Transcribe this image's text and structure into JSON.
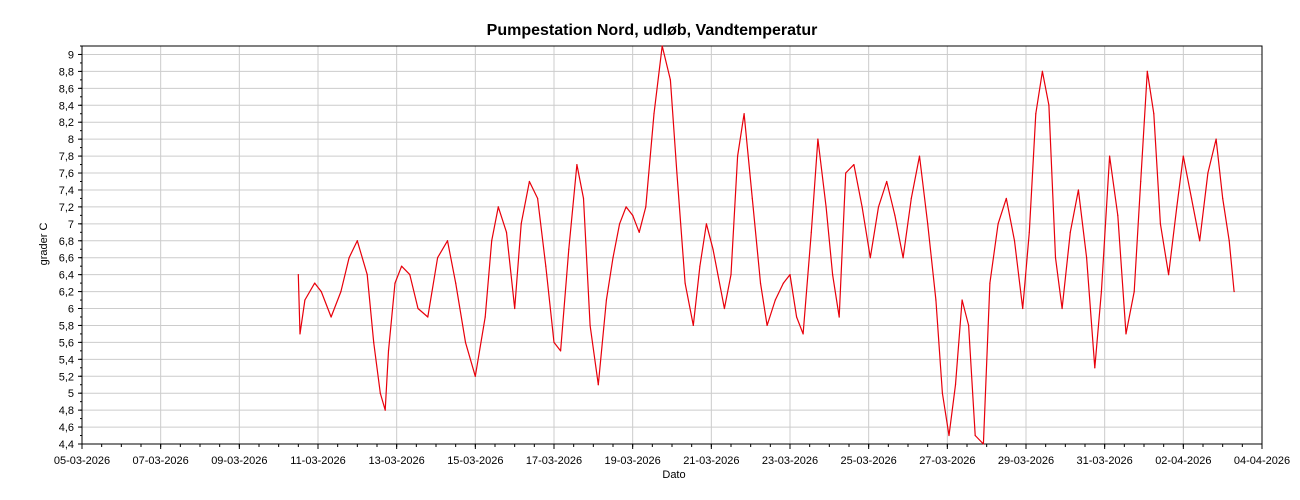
{
  "chart_data": {
    "type": "line",
    "title": "Pumpestation Nord, udløb, Vandtemperatur",
    "xlabel": "Dato",
    "ylabel": "grader C",
    "xlim": [
      "2026-03-05",
      "2026-04-04"
    ],
    "ylim": [
      4.4,
      9.1
    ],
    "x_tick_labels": [
      "05-03-2026",
      "07-03-2026",
      "09-03-2026",
      "11-03-2026",
      "13-03-2026",
      "15-03-2026",
      "17-03-2026",
      "19-03-2026",
      "21-03-2026",
      "23-03-2026",
      "25-03-2026",
      "27-03-2026",
      "29-03-2026",
      "31-03-2026",
      "02-04-2026",
      "04-04-2026"
    ],
    "y_tick_labels": [
      "4,4",
      "4,6",
      "4,8",
      "5",
      "5,2",
      "5,4",
      "5,6",
      "5,8",
      "6",
      "6,2",
      "6,4",
      "6,6",
      "6,8",
      "7",
      "7,2",
      "7,4",
      "7,6",
      "7,8",
      "8",
      "8,2",
      "8,4",
      "8,6",
      "8,8",
      "9"
    ],
    "y_ticks": [
      4.4,
      4.6,
      4.8,
      5.0,
      5.2,
      5.4,
      5.6,
      5.8,
      6.0,
      6.2,
      6.4,
      6.6,
      6.8,
      7.0,
      7.2,
      7.4,
      7.6,
      7.8,
      8.0,
      8.2,
      8.4,
      8.6,
      8.8,
      9.0
    ],
    "grid": true,
    "colors": {
      "series": "#e8000b",
      "grid": "#cccccc",
      "axis": "#000000"
    },
    "series": [
      {
        "x": [
          "2026-03-10T12:00",
          "2026-03-10T13:00",
          "2026-03-10T16:00",
          "2026-03-10T22:00",
          "2026-03-11T02:00",
          "2026-03-11T08:00",
          "2026-03-11T14:00",
          "2026-03-11T19:00",
          "2026-03-12T00:00",
          "2026-03-12T06:00",
          "2026-03-12T10:00",
          "2026-03-12T14:00",
          "2026-03-12T17:00",
          "2026-03-12T19:00",
          "2026-03-12T23:00",
          "2026-03-13T03:00",
          "2026-03-13T08:00",
          "2026-03-13T13:00",
          "2026-03-13T19:00",
          "2026-03-14T01:00",
          "2026-03-14T07:00",
          "2026-03-14T12:00",
          "2026-03-14T18:00",
          "2026-03-15T00:00",
          "2026-03-15T06:00",
          "2026-03-15T10:00",
          "2026-03-15T14:00",
          "2026-03-15T19:00",
          "2026-03-16T00:00",
          "2026-03-16T04:00",
          "2026-03-16T09:00",
          "2026-03-16T14:00",
          "2026-03-16T19:00",
          "2026-03-17T00:00",
          "2026-03-17T04:00",
          "2026-03-17T09:00",
          "2026-03-17T14:00",
          "2026-03-17T18:00",
          "2026-03-17T22:00",
          "2026-03-18T03:00",
          "2026-03-18T08:00",
          "2026-03-18T12:00",
          "2026-03-18T16:00",
          "2026-03-18T20:00",
          "2026-03-19T00:00",
          "2026-03-19T04:00",
          "2026-03-19T08:00",
          "2026-03-19T13:00",
          "2026-03-19T18:00",
          "2026-03-19T23:00",
          "2026-03-20T03:00",
          "2026-03-20T08:00",
          "2026-03-20T13:00",
          "2026-03-20T17:00",
          "2026-03-20T21:00",
          "2026-03-21T01:00",
          "2026-03-21T04:00",
          "2026-03-21T08:00",
          "2026-03-21T12:00",
          "2026-03-21T16:00",
          "2026-03-21T20:00",
          "2026-03-22T01:00",
          "2026-03-22T06:00",
          "2026-03-22T10:00",
          "2026-03-22T15:00",
          "2026-03-22T20:00",
          "2026-03-23T00:00",
          "2026-03-23T04:00",
          "2026-03-23T08:00",
          "2026-03-23T13:00",
          "2026-03-23T17:00",
          "2026-03-23T22:00",
          "2026-03-24T02:00",
          "2026-03-24T06:00",
          "2026-03-24T10:00",
          "2026-03-24T15:00",
          "2026-03-24T20:00",
          "2026-03-25T01:00",
          "2026-03-25T06:00",
          "2026-03-25T11:00",
          "2026-03-25T16:00",
          "2026-03-25T21:00",
          "2026-03-26T02:00",
          "2026-03-26T07:00",
          "2026-03-26T12:00",
          "2026-03-26T17:00",
          "2026-03-26T21:00",
          "2026-03-27T01:00",
          "2026-03-27T05:00",
          "2026-03-27T09:00",
          "2026-03-27T13:00",
          "2026-03-27T17:00",
          "2026-03-27T22:00",
          "2026-03-28T02:00",
          "2026-03-28T07:00",
          "2026-03-28T12:00",
          "2026-03-28T17:00",
          "2026-03-28T22:00",
          "2026-03-29T02:00",
          "2026-03-29T06:00",
          "2026-03-29T10:00",
          "2026-03-29T14:00",
          "2026-03-29T18:00",
          "2026-03-29T22:00",
          "2026-03-30T03:00",
          "2026-03-30T08:00",
          "2026-03-30T13:00",
          "2026-03-30T18:00",
          "2026-03-30T22:00",
          "2026-03-31T03:00",
          "2026-03-31T08:00",
          "2026-03-31T13:00",
          "2026-03-31T18:00",
          "2026-03-31T22:00",
          "2026-04-01T02:00",
          "2026-04-01T06:00",
          "2026-04-01T10:00",
          "2026-04-01T15:00",
          "2026-04-01T20:00",
          "2026-04-02T00:00",
          "2026-04-02T05:00",
          "2026-04-02T10:00",
          "2026-04-02T15:00",
          "2026-04-02T20:00",
          "2026-04-03T00:00",
          "2026-04-03T04:00",
          "2026-04-03T07:00"
        ],
        "y": [
          6.4,
          5.7,
          6.1,
          6.3,
          6.2,
          5.9,
          6.2,
          6.6,
          6.8,
          6.4,
          5.6,
          5.0,
          4.8,
          5.5,
          6.3,
          6.5,
          6.4,
          6.0,
          5.9,
          6.6,
          6.8,
          6.3,
          5.6,
          5.2,
          5.9,
          6.8,
          7.2,
          6.9,
          6.0,
          7.0,
          7.5,
          7.3,
          6.5,
          5.6,
          5.5,
          6.7,
          7.7,
          7.3,
          5.8,
          5.1,
          6.1,
          6.6,
          7.0,
          7.2,
          7.1,
          6.9,
          7.2,
          8.3,
          9.1,
          8.7,
          7.6,
          6.3,
          5.8,
          6.5,
          7.0,
          6.7,
          6.4,
          6.0,
          6.4,
          7.8,
          8.3,
          7.3,
          6.3,
          5.8,
          6.1,
          6.3,
          6.4,
          5.9,
          5.7,
          6.9,
          8.0,
          7.2,
          6.4,
          5.9,
          7.6,
          7.7,
          7.2,
          6.6,
          7.2,
          7.5,
          7.1,
          6.6,
          7.3,
          7.8,
          7.0,
          6.1,
          5.0,
          4.5,
          5.1,
          6.1,
          5.8,
          4.5,
          4.4,
          6.3,
          7.0,
          7.3,
          6.8,
          6.0,
          6.9,
          8.3,
          8.8,
          8.4,
          6.6,
          6.0,
          6.9,
          7.4,
          6.6,
          5.3,
          6.2,
          7.8,
          7.1,
          5.7,
          6.2,
          7.5,
          8.8,
          8.3,
          7.0,
          6.4,
          7.2,
          7.8,
          7.3,
          6.8,
          7.6,
          8.0,
          7.3,
          6.8,
          6.2
        ]
      }
    ]
  }
}
